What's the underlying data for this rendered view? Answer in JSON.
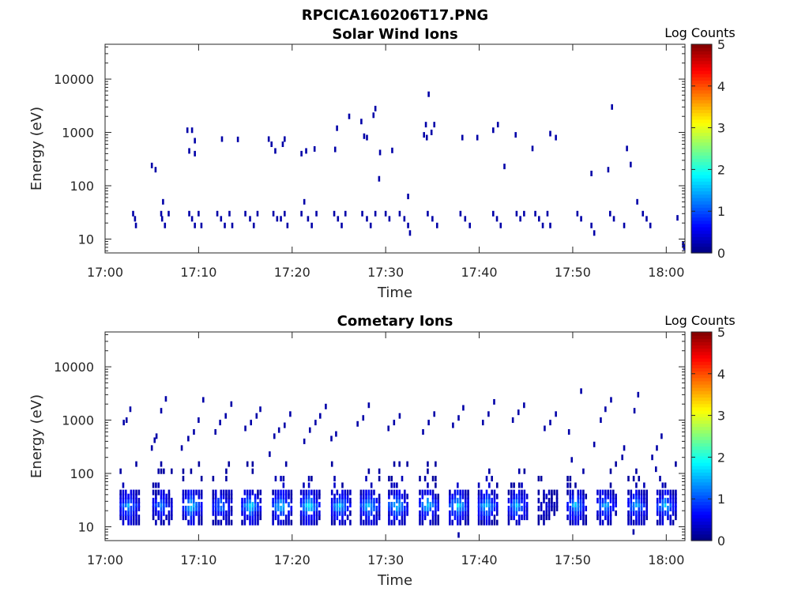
{
  "figure": {
    "title": "RPCICA160206T17.PNG"
  },
  "colorbar": {
    "label": "Log Counts",
    "ticks": [
      "0",
      "1",
      "2",
      "3",
      "4",
      "5"
    ],
    "range": [
      0,
      5
    ],
    "colormap": "jet"
  },
  "chart_data": [
    {
      "type": "heatmap",
      "title": "Solar Wind Ions",
      "xlabel": "Time",
      "ylabel": "Energy (eV)",
      "xticks": [
        "17:00",
        "17:10",
        "17:20",
        "17:30",
        "17:40",
        "17:50",
        "18:00"
      ],
      "xlim_minutes": [
        0,
        62
      ],
      "yticks": [
        "10",
        "100",
        "1000",
        "10000"
      ],
      "ylim": [
        5.5,
        45000
      ],
      "yscale": "log",
      "grid": false,
      "colorbar_label": "Log Counts",
      "points": [
        {
          "t": 3.0,
          "e": 30,
          "c": 0.2
        },
        {
          "t": 3.2,
          "e": 24,
          "c": 0.2
        },
        {
          "t": 3.3,
          "e": 18,
          "c": 0.2
        },
        {
          "t": 6.0,
          "e": 30,
          "c": 0.2
        },
        {
          "t": 6.1,
          "e": 24,
          "c": 0.2
        },
        {
          "t": 6.2,
          "e": 50,
          "c": 0.2
        },
        {
          "t": 6.4,
          "e": 18,
          "c": 0.2
        },
        {
          "t": 6.8,
          "e": 30,
          "c": 0.2
        },
        {
          "t": 9.0,
          "e": 30,
          "c": 0.2
        },
        {
          "t": 9.3,
          "e": 24,
          "c": 0.2
        },
        {
          "t": 9.6,
          "e": 18,
          "c": 0.2
        },
        {
          "t": 10.0,
          "e": 30,
          "c": 0.2
        },
        {
          "t": 10.3,
          "e": 18,
          "c": 0.2
        },
        {
          "t": 12.0,
          "e": 30,
          "c": 0.2
        },
        {
          "t": 12.4,
          "e": 24,
          "c": 0.2
        },
        {
          "t": 12.8,
          "e": 18,
          "c": 0.2
        },
        {
          "t": 13.3,
          "e": 30,
          "c": 0.2
        },
        {
          "t": 13.6,
          "e": 18,
          "c": 0.2
        },
        {
          "t": 15.0,
          "e": 30,
          "c": 0.2
        },
        {
          "t": 15.5,
          "e": 24,
          "c": 0.2
        },
        {
          "t": 15.9,
          "e": 18,
          "c": 0.2
        },
        {
          "t": 16.3,
          "e": 30,
          "c": 0.2
        },
        {
          "t": 18.0,
          "e": 30,
          "c": 0.2
        },
        {
          "t": 18.4,
          "e": 24,
          "c": 0.2
        },
        {
          "t": 18.8,
          "e": 24,
          "c": 0.2
        },
        {
          "t": 19.2,
          "e": 30,
          "c": 0.2
        },
        {
          "t": 19.5,
          "e": 18,
          "c": 0.2
        },
        {
          "t": 21.0,
          "e": 30,
          "c": 0.2
        },
        {
          "t": 21.3,
          "e": 50,
          "c": 0.2
        },
        {
          "t": 21.7,
          "e": 24,
          "c": 0.2
        },
        {
          "t": 22.1,
          "e": 18,
          "c": 0.2
        },
        {
          "t": 22.6,
          "e": 30,
          "c": 0.2
        },
        {
          "t": 24.5,
          "e": 30,
          "c": 0.2
        },
        {
          "t": 24.9,
          "e": 24,
          "c": 0.2
        },
        {
          "t": 25.3,
          "e": 18,
          "c": 0.2
        },
        {
          "t": 25.7,
          "e": 30,
          "c": 0.2
        },
        {
          "t": 27.5,
          "e": 30,
          "c": 0.2
        },
        {
          "t": 28.0,
          "e": 24,
          "c": 0.2
        },
        {
          "t": 28.4,
          "e": 18,
          "c": 0.2
        },
        {
          "t": 28.9,
          "e": 30,
          "c": 0.2
        },
        {
          "t": 30.0,
          "e": 30,
          "c": 0.2
        },
        {
          "t": 30.4,
          "e": 24,
          "c": 0.2
        },
        {
          "t": 31.5,
          "e": 30,
          "c": 0.2
        },
        {
          "t": 32.0,
          "e": 24,
          "c": 0.2
        },
        {
          "t": 32.4,
          "e": 18,
          "c": 0.2
        },
        {
          "t": 32.6,
          "e": 13,
          "c": 0.2
        },
        {
          "t": 34.5,
          "e": 30,
          "c": 0.2
        },
        {
          "t": 35.0,
          "e": 24,
          "c": 0.2
        },
        {
          "t": 35.5,
          "e": 18,
          "c": 0.2
        },
        {
          "t": 38.0,
          "e": 30,
          "c": 0.2
        },
        {
          "t": 38.5,
          "e": 24,
          "c": 0.2
        },
        {
          "t": 39.0,
          "e": 18,
          "c": 0.2
        },
        {
          "t": 41.5,
          "e": 30,
          "c": 0.2
        },
        {
          "t": 41.9,
          "e": 24,
          "c": 0.2
        },
        {
          "t": 42.3,
          "e": 18,
          "c": 0.2
        },
        {
          "t": 44.0,
          "e": 30,
          "c": 0.2
        },
        {
          "t": 44.4,
          "e": 24,
          "c": 0.2
        },
        {
          "t": 44.8,
          "e": 30,
          "c": 0.2
        },
        {
          "t": 46.0,
          "e": 30,
          "c": 0.2
        },
        {
          "t": 46.4,
          "e": 24,
          "c": 0.2
        },
        {
          "t": 46.8,
          "e": 18,
          "c": 0.2
        },
        {
          "t": 47.3,
          "e": 30,
          "c": 0.2
        },
        {
          "t": 47.6,
          "e": 18,
          "c": 0.2
        },
        {
          "t": 50.5,
          "e": 30,
          "c": 0.2
        },
        {
          "t": 50.9,
          "e": 24,
          "c": 0.2
        },
        {
          "t": 52.0,
          "e": 18,
          "c": 0.2
        },
        {
          "t": 52.3,
          "e": 13,
          "c": 0.2
        },
        {
          "t": 54.0,
          "e": 30,
          "c": 0.2
        },
        {
          "t": 54.4,
          "e": 24,
          "c": 0.2
        },
        {
          "t": 55.5,
          "e": 18,
          "c": 0.2
        },
        {
          "t": 57.5,
          "e": 30,
          "c": 0.2
        },
        {
          "t": 57.9,
          "e": 24,
          "c": 0.2
        },
        {
          "t": 58.3,
          "e": 18,
          "c": 0.2
        },
        {
          "t": 56.9,
          "e": 50,
          "c": 0.2
        },
        {
          "t": 61.2,
          "e": 25,
          "c": 0.2
        },
        {
          "t": 61.8,
          "e": 8,
          "c": 0.2
        },
        {
          "t": 61.9,
          "e": 7,
          "c": 0.2
        },
        {
          "t": 8.8,
          "e": 1100,
          "c": 0.2
        },
        {
          "t": 9.3,
          "e": 1100,
          "c": 0.2
        },
        {
          "t": 9.0,
          "e": 450,
          "c": 0.2
        },
        {
          "t": 9.6,
          "e": 400,
          "c": 0.2
        },
        {
          "t": 9.6,
          "e": 700,
          "c": 0.2
        },
        {
          "t": 5.0,
          "e": 240,
          "c": 0.2
        },
        {
          "t": 5.4,
          "e": 200,
          "c": 0.2
        },
        {
          "t": 12.5,
          "e": 750,
          "c": 0.2
        },
        {
          "t": 14.2,
          "e": 740,
          "c": 0.2
        },
        {
          "t": 17.5,
          "e": 750,
          "c": 0.2
        },
        {
          "t": 17.8,
          "e": 600,
          "c": 0.2
        },
        {
          "t": 18.2,
          "e": 450,
          "c": 0.2
        },
        {
          "t": 19.2,
          "e": 750,
          "c": 0.2
        },
        {
          "t": 19.0,
          "e": 600,
          "c": 0.2
        },
        {
          "t": 21.0,
          "e": 400,
          "c": 0.2
        },
        {
          "t": 21.5,
          "e": 450,
          "c": 0.2
        },
        {
          "t": 22.4,
          "e": 490,
          "c": 0.2
        },
        {
          "t": 24.6,
          "e": 480,
          "c": 0.2
        },
        {
          "t": 24.8,
          "e": 1200,
          "c": 0.2
        },
        {
          "t": 26.1,
          "e": 2000,
          "c": 0.2
        },
        {
          "t": 27.4,
          "e": 1600,
          "c": 0.2
        },
        {
          "t": 27.7,
          "e": 850,
          "c": 0.2
        },
        {
          "t": 28.0,
          "e": 800,
          "c": 0.2
        },
        {
          "t": 28.7,
          "e": 2100,
          "c": 0.2
        },
        {
          "t": 28.9,
          "e": 2800,
          "c": 0.2
        },
        {
          "t": 29.3,
          "e": 135,
          "c": 0.2
        },
        {
          "t": 29.4,
          "e": 420,
          "c": 0.2
        },
        {
          "t": 30.7,
          "e": 460,
          "c": 0.2
        },
        {
          "t": 34.1,
          "e": 900,
          "c": 0.2
        },
        {
          "t": 34.4,
          "e": 800,
          "c": 0.2
        },
        {
          "t": 34.6,
          "e": 5200,
          "c": 0.2
        },
        {
          "t": 34.3,
          "e": 1400,
          "c": 0.2
        },
        {
          "t": 35.2,
          "e": 1400,
          "c": 0.2
        },
        {
          "t": 34.9,
          "e": 1000,
          "c": 0.2
        },
        {
          "t": 38.2,
          "e": 800,
          "c": 0.2
        },
        {
          "t": 39.8,
          "e": 800,
          "c": 0.2
        },
        {
          "t": 41.5,
          "e": 1100,
          "c": 0.2
        },
        {
          "t": 42.0,
          "e": 1400,
          "c": 0.2
        },
        {
          "t": 42.7,
          "e": 230,
          "c": 0.2
        },
        {
          "t": 43.9,
          "e": 900,
          "c": 0.2
        },
        {
          "t": 45.7,
          "e": 500,
          "c": 0.2
        },
        {
          "t": 47.6,
          "e": 950,
          "c": 0.2
        },
        {
          "t": 48.2,
          "e": 800,
          "c": 0.2
        },
        {
          "t": 52.0,
          "e": 170,
          "c": 0.2
        },
        {
          "t": 53.8,
          "e": 200,
          "c": 0.2
        },
        {
          "t": 54.2,
          "e": 3000,
          "c": 0.2
        },
        {
          "t": 55.8,
          "e": 500,
          "c": 0.2
        },
        {
          "t": 56.2,
          "e": 250,
          "c": 0.2
        },
        {
          "t": 32.4,
          "e": 63,
          "c": 0.2
        }
      ]
    },
    {
      "type": "heatmap",
      "title": "Cometary Ions",
      "xlabel": "Time",
      "ylabel": "Energy (eV)",
      "xticks": [
        "17:00",
        "17:10",
        "17:20",
        "17:30",
        "17:40",
        "17:50",
        "18:00"
      ],
      "xlim_minutes": [
        0,
        62
      ],
      "yticks": [
        "10",
        "100",
        "1000",
        "10000"
      ],
      "ylim": [
        5.5,
        45000
      ],
      "yscale": "log",
      "grid": false,
      "colorbar_label": "Log Counts",
      "bursts": [
        {
          "t": 2.5,
          "peak": 1.6
        },
        {
          "t": 6.0,
          "peak": 1.3
        },
        {
          "t": 9.2,
          "peak": 1.9
        },
        {
          "t": 12.4,
          "peak": 1.4
        },
        {
          "t": 15.5,
          "peak": 1.9
        },
        {
          "t": 18.8,
          "peak": 1.9
        },
        {
          "t": 21.8,
          "peak": 2.0
        },
        {
          "t": 25.1,
          "peak": 1.8
        },
        {
          "t": 28.2,
          "peak": 1.8
        },
        {
          "t": 31.2,
          "peak": 1.9
        },
        {
          "t": 34.5,
          "peak": 1.8
        },
        {
          "t": 37.7,
          "peak": 2.0
        },
        {
          "t": 40.8,
          "peak": 1.8
        },
        {
          "t": 44.0,
          "peak": 1.7
        },
        {
          "t": 47.2,
          "peak": 0.5
        },
        {
          "t": 50.3,
          "peak": 1.7
        },
        {
          "t": 53.5,
          "peak": 1.6
        },
        {
          "t": 56.8,
          "peak": 1.6
        },
        {
          "t": 59.9,
          "peak": 1.7
        }
      ],
      "points": [
        {
          "t": 2.0,
          "e": 900,
          "c": 0.2
        },
        {
          "t": 2.7,
          "e": 1600,
          "c": 0.2
        },
        {
          "t": 2.3,
          "e": 1000,
          "c": 0.2
        },
        {
          "t": 5.0,
          "e": 300,
          "c": 0.2
        },
        {
          "t": 5.3,
          "e": 420,
          "c": 0.2
        },
        {
          "t": 5.5,
          "e": 500,
          "c": 0.2
        },
        {
          "t": 6.0,
          "e": 1500,
          "c": 0.2
        },
        {
          "t": 6.5,
          "e": 2500,
          "c": 0.2
        },
        {
          "t": 8.2,
          "e": 300,
          "c": 0.2
        },
        {
          "t": 8.9,
          "e": 450,
          "c": 0.2
        },
        {
          "t": 9.5,
          "e": 600,
          "c": 0.2
        },
        {
          "t": 10.0,
          "e": 1000,
          "c": 0.2
        },
        {
          "t": 10.5,
          "e": 2400,
          "c": 0.2
        },
        {
          "t": 11.8,
          "e": 600,
          "c": 0.2
        },
        {
          "t": 12.3,
          "e": 900,
          "c": 0.2
        },
        {
          "t": 12.9,
          "e": 1200,
          "c": 0.2
        },
        {
          "t": 13.5,
          "e": 2000,
          "c": 0.2
        },
        {
          "t": 15.0,
          "e": 700,
          "c": 0.2
        },
        {
          "t": 15.6,
          "e": 900,
          "c": 0.2
        },
        {
          "t": 16.2,
          "e": 1200,
          "c": 0.2
        },
        {
          "t": 16.6,
          "e": 1600,
          "c": 0.2
        },
        {
          "t": 17.6,
          "e": 230,
          "c": 0.2
        },
        {
          "t": 18.1,
          "e": 500,
          "c": 0.2
        },
        {
          "t": 18.6,
          "e": 650,
          "c": 0.2
        },
        {
          "t": 19.2,
          "e": 800,
          "c": 0.2
        },
        {
          "t": 19.8,
          "e": 1300,
          "c": 0.2
        },
        {
          "t": 21.3,
          "e": 400,
          "c": 0.2
        },
        {
          "t": 21.9,
          "e": 650,
          "c": 0.2
        },
        {
          "t": 22.5,
          "e": 900,
          "c": 0.2
        },
        {
          "t": 23.0,
          "e": 1200,
          "c": 0.2
        },
        {
          "t": 23.6,
          "e": 1800,
          "c": 0.2
        },
        {
          "t": 24.2,
          "e": 450,
          "c": 0.2
        },
        {
          "t": 24.7,
          "e": 550,
          "c": 0.2
        },
        {
          "t": 27.0,
          "e": 850,
          "c": 0.2
        },
        {
          "t": 27.6,
          "e": 1100,
          "c": 0.2
        },
        {
          "t": 28.2,
          "e": 1900,
          "c": 0.2
        },
        {
          "t": 30.3,
          "e": 700,
          "c": 0.2
        },
        {
          "t": 30.9,
          "e": 900,
          "c": 0.2
        },
        {
          "t": 31.5,
          "e": 1200,
          "c": 0.2
        },
        {
          "t": 34.0,
          "e": 600,
          "c": 0.2
        },
        {
          "t": 34.6,
          "e": 900,
          "c": 0.2
        },
        {
          "t": 35.2,
          "e": 1300,
          "c": 0.2
        },
        {
          "t": 37.2,
          "e": 800,
          "c": 0.2
        },
        {
          "t": 37.8,
          "e": 1100,
          "c": 0.2
        },
        {
          "t": 38.3,
          "e": 1700,
          "c": 0.2
        },
        {
          "t": 40.4,
          "e": 900,
          "c": 0.2
        },
        {
          "t": 41.0,
          "e": 1300,
          "c": 0.2
        },
        {
          "t": 41.6,
          "e": 2200,
          "c": 0.2
        },
        {
          "t": 43.6,
          "e": 1000,
          "c": 0.2
        },
        {
          "t": 44.2,
          "e": 1400,
          "c": 0.2
        },
        {
          "t": 44.8,
          "e": 1900,
          "c": 0.2
        },
        {
          "t": 47.0,
          "e": 700,
          "c": 0.2
        },
        {
          "t": 47.6,
          "e": 900,
          "c": 0.2
        },
        {
          "t": 48.2,
          "e": 1300,
          "c": 0.2
        },
        {
          "t": 50.9,
          "e": 3500,
          "c": 0.2
        },
        {
          "t": 49.6,
          "e": 600,
          "c": 0.2
        },
        {
          "t": 49.9,
          "e": 180,
          "c": 0.2
        },
        {
          "t": 53.0,
          "e": 1000,
          "c": 0.2
        },
        {
          "t": 53.5,
          "e": 1600,
          "c": 0.2
        },
        {
          "t": 54.1,
          "e": 2400,
          "c": 0.2
        },
        {
          "t": 52.3,
          "e": 350,
          "c": 0.2
        },
        {
          "t": 56.6,
          "e": 1500,
          "c": 0.2
        },
        {
          "t": 57.0,
          "e": 3000,
          "c": 0.2
        },
        {
          "t": 55.5,
          "e": 300,
          "c": 0.2
        },
        {
          "t": 55.3,
          "e": 200,
          "c": 0.2
        },
        {
          "t": 58.5,
          "e": 200,
          "c": 0.2
        },
        {
          "t": 59.0,
          "e": 300,
          "c": 0.2
        },
        {
          "t": 59.5,
          "e": 500,
          "c": 0.2
        },
        {
          "t": 58.9,
          "e": 120,
          "c": 0.2
        },
        {
          "t": 56.5,
          "e": 8,
          "c": 0.2
        },
        {
          "t": 37.8,
          "e": 7,
          "c": 0.2
        }
      ]
    }
  ]
}
